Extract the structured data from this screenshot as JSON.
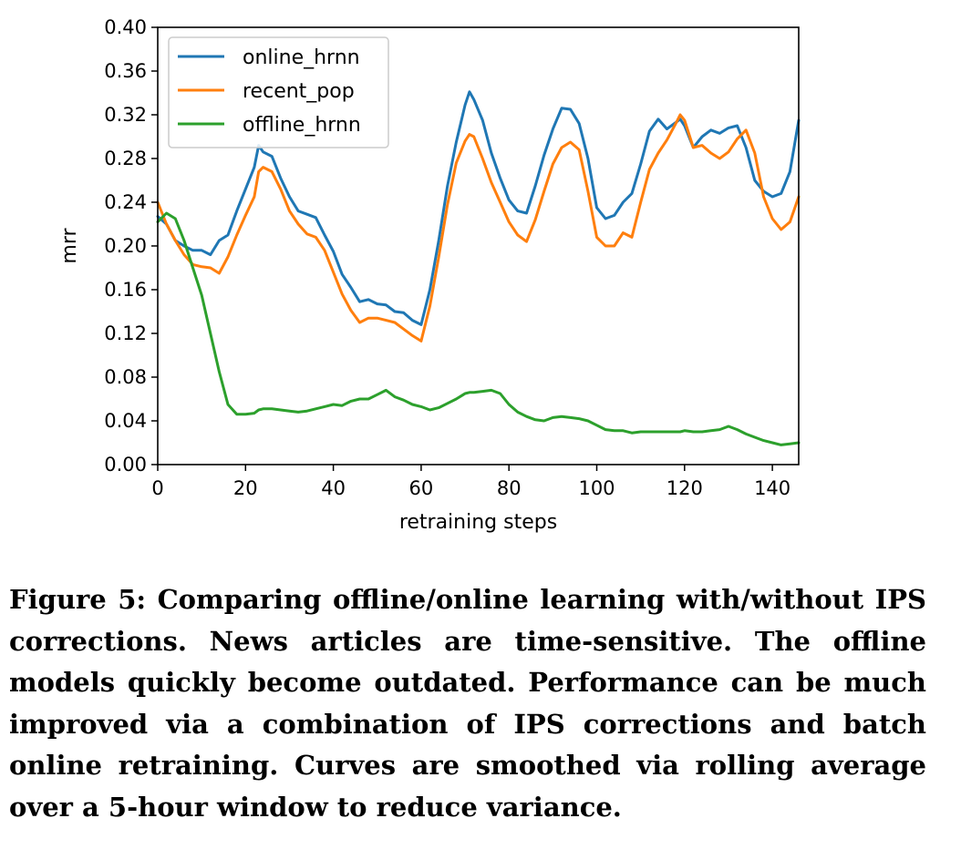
{
  "chart_data": {
    "type": "line",
    "title": "",
    "xlabel": "retraining steps",
    "ylabel": "mrr",
    "xlim": [
      0,
      146
    ],
    "ylim": [
      0.0,
      0.4
    ],
    "xticks": [
      0,
      20,
      40,
      60,
      80,
      100,
      120,
      140
    ],
    "xtick_labels": [
      "0",
      "20",
      "40",
      "60",
      "80",
      "100",
      "120",
      "140"
    ],
    "yticks": [
      0.0,
      0.04,
      0.08,
      0.12,
      0.16,
      0.2,
      0.24,
      0.28,
      0.32,
      0.36,
      0.4
    ],
    "ytick_labels": [
      "0.00",
      "0.04",
      "0.08",
      "0.12",
      "0.16",
      "0.20",
      "0.24",
      "0.28",
      "0.32",
      "0.36",
      "0.40"
    ],
    "grid": false,
    "legend_position": "top-left",
    "x": [
      0,
      2,
      4,
      6,
      8,
      10,
      12,
      14,
      16,
      18,
      20,
      22,
      23,
      24,
      26,
      28,
      30,
      32,
      34,
      36,
      38,
      40,
      42,
      44,
      46,
      48,
      50,
      52,
      54,
      56,
      58,
      60,
      62,
      64,
      66,
      68,
      70,
      71,
      72,
      74,
      76,
      78,
      80,
      82,
      84,
      86,
      88,
      90,
      92,
      94,
      96,
      98,
      100,
      102,
      104,
      106,
      108,
      110,
      112,
      114,
      116,
      118,
      119,
      120,
      122,
      124,
      126,
      128,
      130,
      132,
      134,
      136,
      138,
      140,
      142,
      144,
      146
    ],
    "series": [
      {
        "name": "online_hrnn",
        "color": "#1f77b4",
        "values": [
          0.227,
          0.22,
          0.205,
          0.2,
          0.196,
          0.196,
          0.192,
          0.205,
          0.21,
          0.232,
          0.252,
          0.272,
          0.292,
          0.286,
          0.282,
          0.262,
          0.245,
          0.232,
          0.229,
          0.226,
          0.21,
          0.195,
          0.174,
          0.162,
          0.149,
          0.151,
          0.147,
          0.146,
          0.14,
          0.139,
          0.132,
          0.128,
          0.16,
          0.205,
          0.255,
          0.295,
          0.329,
          0.341,
          0.334,
          0.315,
          0.285,
          0.262,
          0.242,
          0.232,
          0.23,
          0.255,
          0.283,
          0.307,
          0.326,
          0.325,
          0.312,
          0.28,
          0.235,
          0.225,
          0.228,
          0.24,
          0.248,
          0.275,
          0.305,
          0.316,
          0.307,
          0.313,
          0.316,
          0.31,
          0.29,
          0.3,
          0.306,
          0.303,
          0.308,
          0.31,
          0.29,
          0.26,
          0.25,
          0.245,
          0.248,
          0.268,
          0.315
        ]
      },
      {
        "name": "recent_pop",
        "color": "#ff7f0e",
        "values": [
          0.24,
          0.22,
          0.205,
          0.192,
          0.183,
          0.181,
          0.18,
          0.175,
          0.19,
          0.21,
          0.228,
          0.245,
          0.268,
          0.272,
          0.268,
          0.252,
          0.232,
          0.22,
          0.211,
          0.208,
          0.196,
          0.176,
          0.156,
          0.141,
          0.13,
          0.134,
          0.134,
          0.132,
          0.13,
          0.124,
          0.118,
          0.113,
          0.145,
          0.19,
          0.238,
          0.276,
          0.296,
          0.302,
          0.3,
          0.28,
          0.258,
          0.24,
          0.222,
          0.21,
          0.204,
          0.224,
          0.25,
          0.275,
          0.29,
          0.295,
          0.288,
          0.25,
          0.208,
          0.2,
          0.2,
          0.212,
          0.208,
          0.24,
          0.27,
          0.285,
          0.297,
          0.312,
          0.32,
          0.315,
          0.29,
          0.292,
          0.285,
          0.28,
          0.286,
          0.298,
          0.306,
          0.285,
          0.245,
          0.225,
          0.215,
          0.222,
          0.245
        ]
      },
      {
        "name": "offline_hrnn",
        "color": "#2ca02c",
        "values": [
          0.222,
          0.23,
          0.225,
          0.205,
          0.18,
          0.155,
          0.12,
          0.085,
          0.055,
          0.046,
          0.046,
          0.047,
          0.05,
          0.051,
          0.051,
          0.05,
          0.049,
          0.048,
          0.049,
          0.051,
          0.053,
          0.055,
          0.054,
          0.058,
          0.06,
          0.06,
          0.064,
          0.068,
          0.062,
          0.059,
          0.055,
          0.053,
          0.05,
          0.052,
          0.056,
          0.06,
          0.065,
          0.066,
          0.066,
          0.067,
          0.068,
          0.065,
          0.055,
          0.048,
          0.044,
          0.041,
          0.04,
          0.043,
          0.044,
          0.043,
          0.042,
          0.04,
          0.036,
          0.032,
          0.031,
          0.031,
          0.029,
          0.03,
          0.03,
          0.03,
          0.03,
          0.03,
          0.03,
          0.031,
          0.03,
          0.03,
          0.031,
          0.032,
          0.035,
          0.032,
          0.028,
          0.025,
          0.022,
          0.02,
          0.018,
          0.019,
          0.02
        ]
      }
    ]
  },
  "caption": "Figure 5: Comparing offline/online learning with/without IPS corrections. News articles are time-sensitive. The offline models quickly become outdated. Performance can be much improved via a combination of IPS corrections and batch online retraining. Curves are smoothed via rolling average over a 5-hour window to reduce variance."
}
